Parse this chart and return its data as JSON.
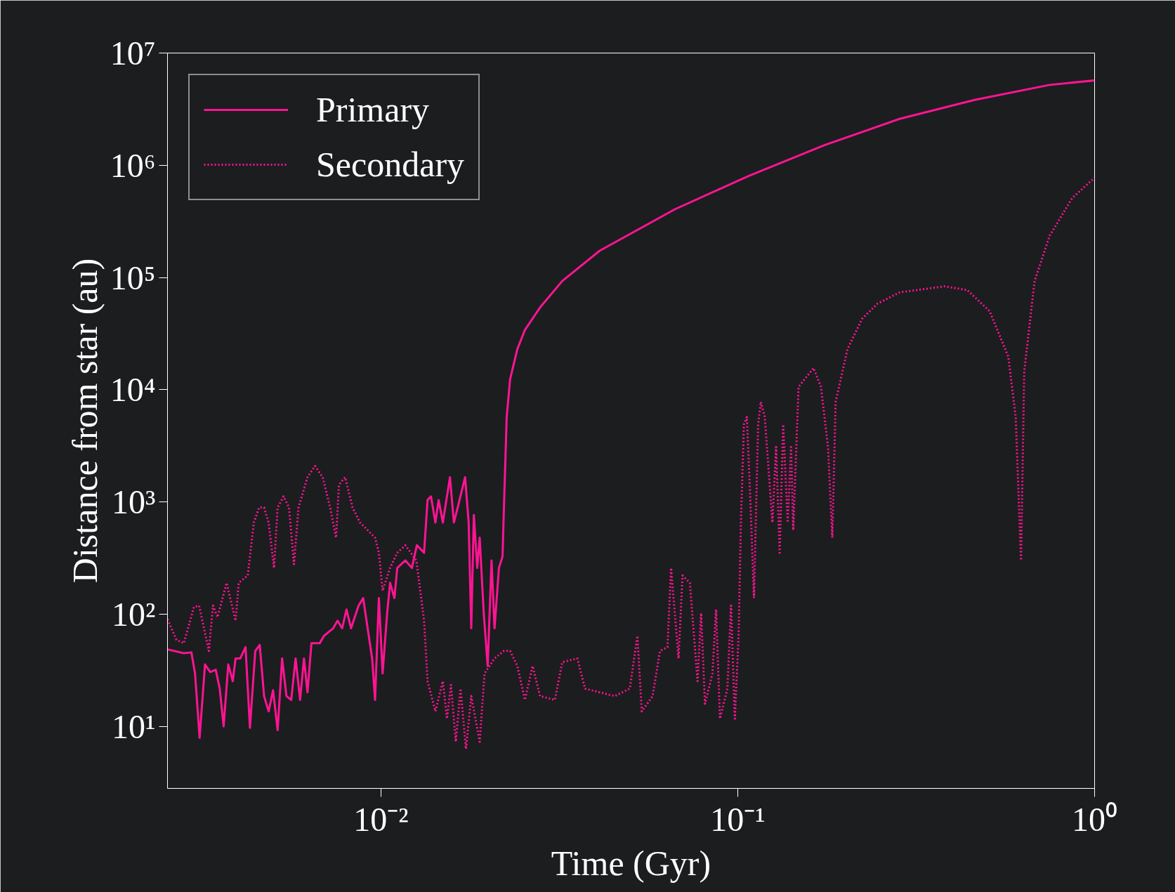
{
  "chart_data": {
    "type": "line",
    "xlabel": "Time (Gyr)",
    "ylabel": "Distance from star (au)",
    "log": "xy",
    "grid": false,
    "legend": "top left",
    "xlim": [
      0.00252,
      1
    ],
    "ylim": [
      2.8,
      10000000
    ],
    "xticks": [
      {
        "value": 0.01,
        "label": "10⁻²"
      },
      {
        "value": 0.1,
        "label": "10⁻¹"
      },
      {
        "value": 1,
        "label": "10⁰"
      }
    ],
    "yticks": [
      {
        "value": 10,
        "label": "10¹"
      },
      {
        "value": 100,
        "label": "10²"
      },
      {
        "value": 1000,
        "label": "10³"
      },
      {
        "value": 10000,
        "label": "10⁴"
      },
      {
        "value": 100000,
        "label": "10⁵"
      },
      {
        "value": 1000000,
        "label": "10⁶"
      },
      {
        "value": 10000000,
        "label": "10⁷"
      }
    ],
    "series": [
      {
        "name": "Primary",
        "color": "#ff1493",
        "line_style": "solid",
        "x": [
          0.00252,
          0.0028,
          0.00294,
          0.00301,
          0.0031,
          0.00321,
          0.00332,
          0.00344,
          0.00353,
          0.00362,
          0.00373,
          0.00384,
          0.00391,
          0.00403,
          0.00417,
          0.00429,
          0.00444,
          0.00457,
          0.0047,
          0.00484,
          0.00498,
          0.00513,
          0.00528,
          0.00543,
          0.0056,
          0.00576,
          0.00593,
          0.00608,
          0.00622,
          0.00638,
          0.00673,
          0.00692,
          0.00734,
          0.00755,
          0.00778,
          0.008,
          0.00824,
          0.00865,
          0.00891,
          0.00917,
          0.00944,
          0.00962,
          0.00986,
          0.0101,
          0.0104,
          0.0106,
          0.0109,
          0.0111,
          0.0117,
          0.0122,
          0.0126,
          0.0132,
          0.0135,
          0.0138,
          0.0142,
          0.0145,
          0.0149,
          0.0156,
          0.016,
          0.0164,
          0.0172,
          0.0176,
          0.0179,
          0.0182,
          0.0186,
          0.0189,
          0.0194,
          0.0199,
          0.0204,
          0.0208,
          0.0214,
          0.0219,
          0.0221,
          0.0225,
          0.023,
          0.0241,
          0.0253,
          0.0279,
          0.0322,
          0.041,
          0.0666,
          0.108,
          0.175,
          0.284,
          0.461,
          0.748,
          1
        ],
        "values": [
          48.5,
          44.9,
          45.6,
          29.6,
          7.9,
          35.6,
          30.5,
          31.9,
          21.7,
          10,
          35.6,
          25.3,
          40.3,
          40.3,
          50.8,
          9.7,
          47,
          53.2,
          18.6,
          13.6,
          21,
          9.25,
          40.3,
          18.6,
          17.2,
          40.3,
          17.2,
          40.3,
          20.1,
          55,
          55,
          64.1,
          74.8,
          87.4,
          74.8,
          110,
          74.8,
          119,
          139,
          74.8,
          40.3,
          17.2,
          139,
          29.6,
          102,
          190,
          139,
          258,
          301,
          258,
          411,
          352,
          1040,
          1120,
          655,
          1040,
          655,
          1660,
          655,
          891,
          1660,
          655,
          74.8,
          764,
          258,
          480,
          102,
          34.5,
          301,
          74.8,
          258,
          326,
          891,
          5710,
          12400,
          23000,
          34000,
          54000,
          93000,
          173000,
          405000,
          811000,
          1510000,
          2590000,
          3820000,
          5200000,
          5710000
        ]
      },
      {
        "name": "Secondary",
        "color": "#ff1493",
        "line_style": "dotted",
        "x": [
          0.00252,
          0.00267,
          0.0028,
          0.00299,
          0.00309,
          0.00329,
          0.00338,
          0.00348,
          0.00369,
          0.00391,
          0.00399,
          0.00423,
          0.0044,
          0.00455,
          0.0047,
          0.00484,
          0.00501,
          0.00513,
          0.00533,
          0.00552,
          0.0057,
          0.00587,
          0.00622,
          0.00653,
          0.00686,
          0.0072,
          0.00748,
          0.00762,
          0.00793,
          0.00832,
          0.00873,
          0.00917,
          0.00962,
          0.00986,
          0.0101,
          0.0106,
          0.0111,
          0.0117,
          0.01256,
          0.0132,
          0.0135,
          0.0142,
          0.0149,
          0.0153,
          0.0157,
          0.0162,
          0.0167,
          0.0173,
          0.0179,
          0.0189,
          0.0195,
          0.0208,
          0.0221,
          0.023,
          0.0241,
          0.0253,
          0.0266,
          0.0279,
          0.0307,
          0.0322,
          0.0355,
          0.0373,
          0.041,
          0.0452,
          0.0498,
          0.0523,
          0.0538,
          0.0577,
          0.0605,
          0.0635,
          0.065,
          0.0682,
          0.07,
          0.0734,
          0.0771,
          0.0789,
          0.0809,
          0.0849,
          0.0869,
          0.0891,
          0.0935,
          0.0957,
          0.0981,
          0.1005,
          0.102,
          0.104,
          0.106,
          0.108,
          0.111,
          0.114,
          0.116,
          0.119,
          0.125,
          0.128,
          0.131,
          0.134,
          0.138,
          0.141,
          0.143,
          0.148,
          0.163,
          0.171,
          0.179,
          0.184,
          0.188,
          0.203,
          0.223,
          0.246,
          0.284,
          0.38,
          0.44,
          0.508,
          0.573,
          0.601,
          0.622,
          0.635,
          0.679,
          0.748,
          0.865,
          1
        ],
        "values": [
          90,
          59,
          55,
          116,
          119,
          47,
          119,
          94,
          190,
          87.4,
          190,
          221,
          655,
          891,
          891,
          655,
          258,
          891,
          1120,
          891,
          279,
          891,
          1660,
          2090,
          1660,
          891,
          480,
          1420,
          1660,
          891,
          655,
          560,
          480,
          352,
          162,
          258,
          352,
          411,
          301,
          87.4,
          25.3,
          13.6,
          25.3,
          11.7,
          23.4,
          7.3,
          21.7,
          6.3,
          18.6,
          7.3,
          29.6,
          40.3,
          47,
          47,
          34.5,
          17.2,
          34.5,
          18.6,
          17.2,
          37.3,
          40.3,
          21.7,
          20.1,
          18.6,
          21.7,
          64.1,
          13.6,
          18.6,
          47,
          50.8,
          258,
          40.3,
          221,
          190,
          25.3,
          102,
          15.9,
          29.6,
          110,
          11.7,
          21.7,
          119,
          11.7,
          64.1,
          655,
          4900,
          5710,
          1420,
          139,
          4900,
          7800,
          5710,
          655,
          3080,
          352,
          4900,
          655,
          3080,
          560,
          10600,
          15600,
          10600,
          3080,
          480,
          7800,
          23000,
          42800,
          58300,
          73600,
          83400,
          77100,
          50000,
          19700,
          5710,
          301,
          14500,
          93000,
          235000,
          509000,
          775000
        ]
      }
    ]
  }
}
